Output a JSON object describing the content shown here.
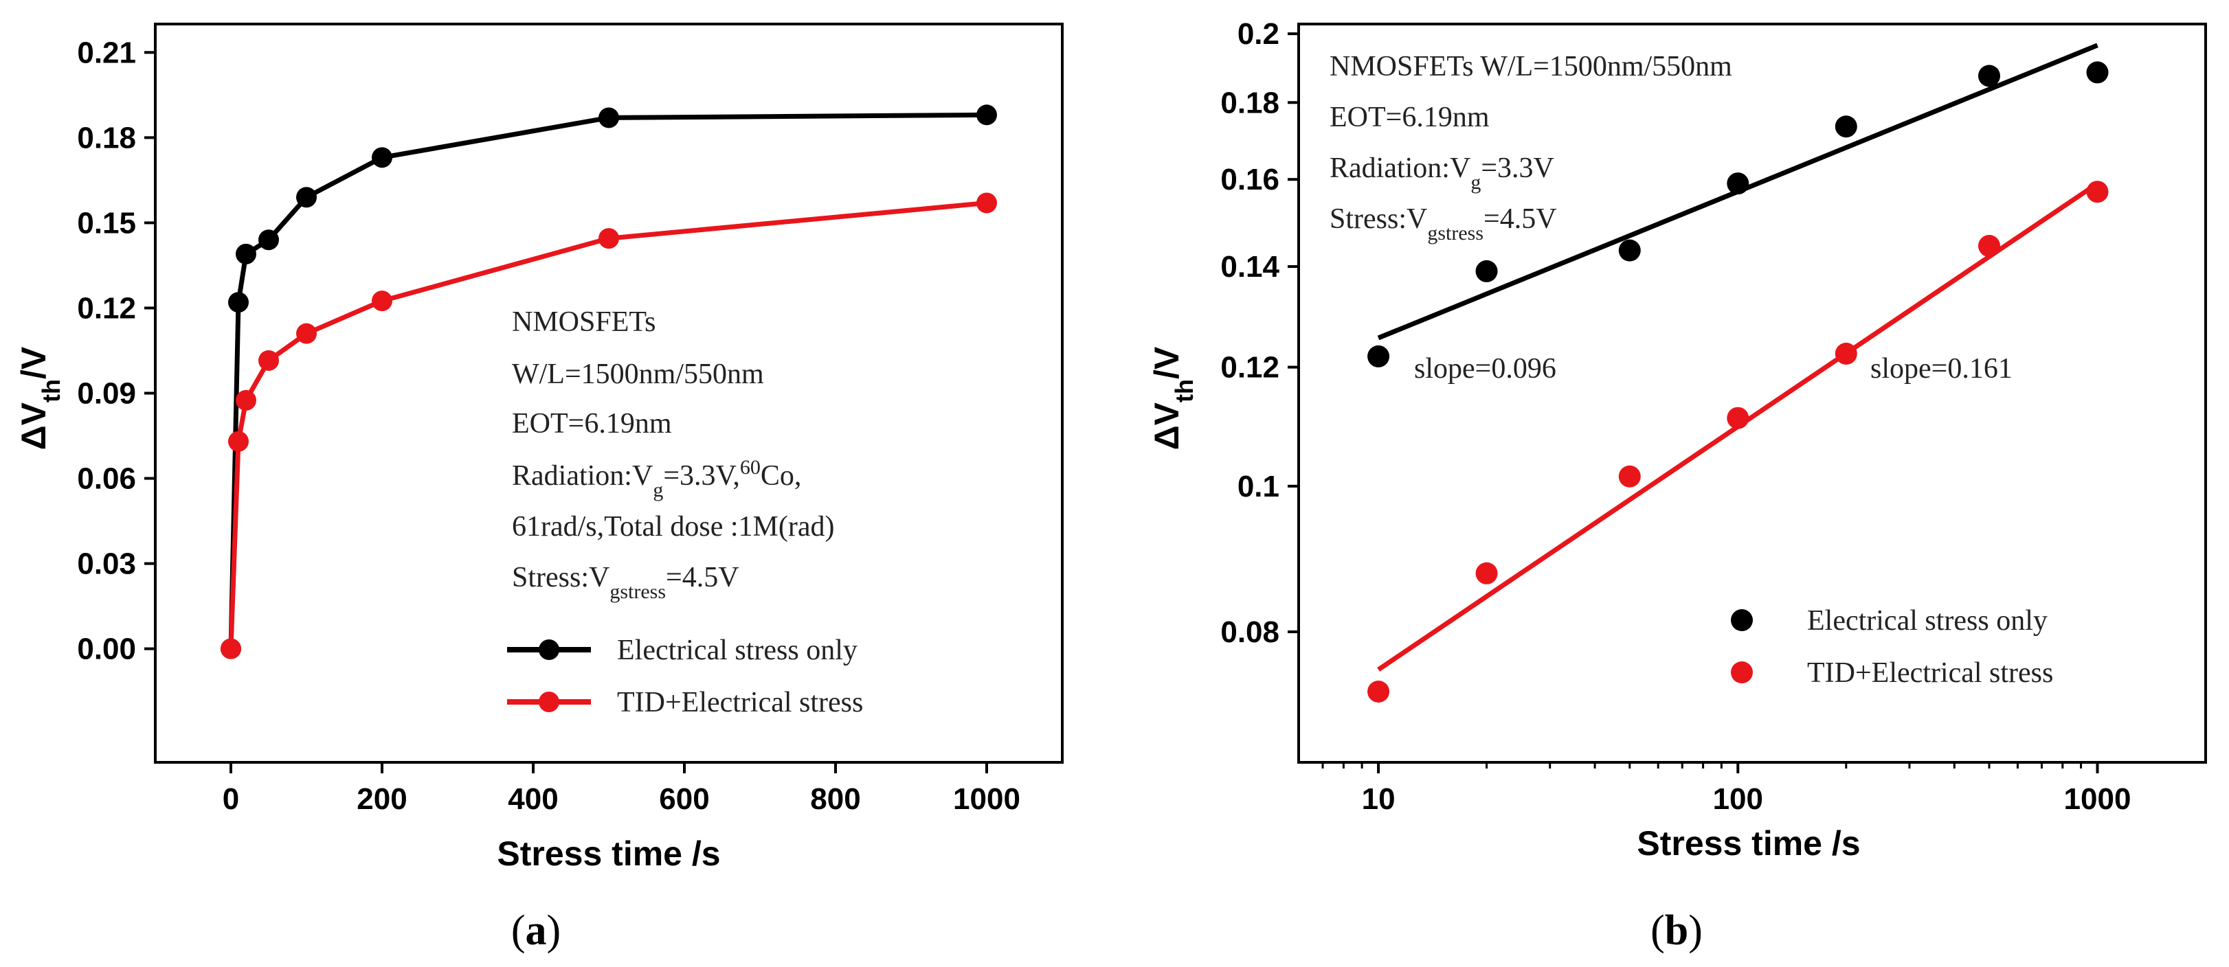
{
  "chart_data": [
    {
      "panel": "a",
      "type": "line",
      "caption": "(a)",
      "xlabel": "Stress time /s",
      "ylabel_main": "ΔV",
      "ylabel_sub": "th",
      "ylabel_tail": "/V",
      "xlim": [
        -100,
        1100
      ],
      "ylim": [
        -0.04,
        0.22
      ],
      "xticks": [
        0,
        200,
        400,
        600,
        800,
        1000
      ],
      "xtick_labels": [
        "0",
        "200",
        "400",
        "600",
        "800",
        "1000"
      ],
      "yticks": [
        0,
        0.03,
        0.06,
        0.09,
        0.12,
        0.15,
        0.18,
        0.21
      ],
      "ytick_labels": [
        "0.00",
        "0.03",
        "0.06",
        "0.09",
        "0.12",
        "0.15",
        "0.18",
        "0.21"
      ],
      "series": [
        {
          "name": "Electrical stress only",
          "color": "#000000",
          "x": [
            0,
            10,
            20,
            50,
            100,
            200,
            500,
            1000
          ],
          "values": [
            0,
            0.122,
            0.139,
            0.144,
            0.159,
            0.173,
            0.187,
            0.188
          ]
        },
        {
          "name": "TID+Electrical stress",
          "color": "#e8161b",
          "x": [
            0,
            10,
            20,
            50,
            100,
            200,
            500,
            1000
          ],
          "values": [
            0,
            0.073,
            0.0875,
            0.1015,
            0.111,
            0.1225,
            0.1445,
            0.157
          ]
        }
      ],
      "annotations": {
        "line1": "NMOSFETs",
        "line2": "W/L=1500nm/550nm",
        "line3": "EOT=6.19nm",
        "line4_a": "Radiation:V",
        "line4_sub": "g",
        "line4_b": "=3.3V,",
        "line4_sup": "60",
        "line4_c": "Co,",
        "line5": "61rad/s,Total dose :1M(rad)",
        "line6_a": "Stress:V",
        "line6_sub": "gstress",
        "line6_b": "=4.5V"
      },
      "legend_position": "bottom-right"
    },
    {
      "panel": "b",
      "type": "scatter",
      "caption": "(b)",
      "xscale": "log",
      "yscale": "log",
      "xlabel": "Stress time /s",
      "ylabel_main": "ΔV",
      "ylabel_sub": "th",
      "ylabel_tail": "/V",
      "xlim": [
        6,
        2000
      ],
      "ylim": [
        0.0655,
        0.203
      ],
      "xticks": [
        10,
        100,
        1000
      ],
      "xtick_labels": [
        "10",
        "100",
        "1000"
      ],
      "yticks": [
        0.08,
        0.1,
        0.12,
        0.14,
        0.16,
        0.18,
        0.2
      ],
      "ytick_labels": [
        "0.08",
        "0.1",
        "0.12",
        "0.14",
        "0.16",
        "0.18",
        "0.2"
      ],
      "series": [
        {
          "name": "Electrical stress only",
          "color": "#000000",
          "x": [
            10,
            20,
            50,
            100,
            200,
            500,
            1000
          ],
          "values": [
            0.122,
            0.139,
            0.1435,
            0.159,
            0.1735,
            0.1875,
            0.1885
          ],
          "fit": {
            "slope": 0.096,
            "x": [
              10,
              1000
            ],
            "values": [
              0.1255,
              0.1965
            ]
          }
        },
        {
          "name": "TID+Electrical stress",
          "color": "#e8161b",
          "x": [
            10,
            20,
            50,
            100,
            200,
            500,
            1000
          ],
          "values": [
            0.073,
            0.0875,
            0.1015,
            0.111,
            0.1225,
            0.1445,
            0.157
          ],
          "fit": {
            "slope": 0.161,
            "x": [
              10,
              1000
            ],
            "values": [
              0.0755,
              0.159
            ]
          }
        }
      ],
      "slope_labels": [
        "slope=0.096",
        "slope=0.161"
      ],
      "annotations": {
        "line1": "NMOSFETs W/L=1500nm/550nm",
        "line2": "EOT=6.19nm",
        "line3_a": "Radiation:V",
        "line3_sub": "g",
        "line3_b": "=3.3V",
        "line4_a": "Stress:V",
        "line4_sub": "gstress",
        "line4_b": "=4.5V"
      },
      "legend_position": "bottom-right"
    }
  ]
}
